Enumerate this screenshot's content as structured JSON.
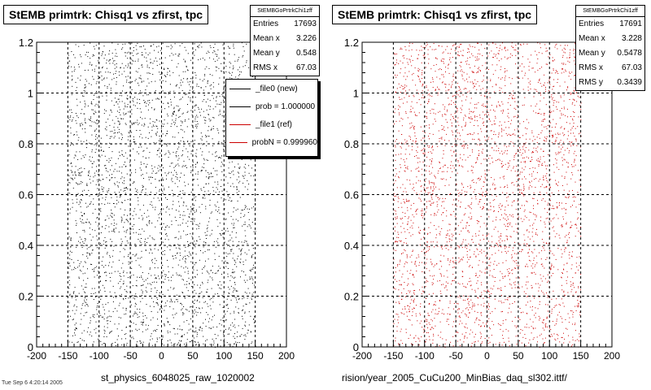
{
  "footer_text": "Tue Sep 6 4:20:14 2005",
  "colors": {
    "new": "#000000",
    "ref": "#cc0000"
  },
  "legend": [
    {
      "label": "_file0 (new)",
      "color": "#000000"
    },
    {
      "label": "prob = 1.000000",
      "color": "#000000"
    },
    {
      "label": "_file1 (ref)",
      "color": "#cc0000"
    },
    {
      "label": "probN = 0.999960",
      "color": "#cc0000"
    }
  ],
  "panels": [
    {
      "title": "StEMB primtrk: Chisq1 vs zfirst, tpc",
      "xlabel": "st_physics_6048025_raw_1020002",
      "stats": {
        "name": "StEMBGoPrtrkChi1zff",
        "rows": [
          {
            "label": "Entries",
            "value": "17693"
          },
          {
            "label": "Mean x",
            "value": "3.226"
          },
          {
            "label": "Mean y",
            "value": "0.548"
          },
          {
            "label": "RMS x",
            "value": "67.03"
          }
        ]
      }
    },
    {
      "title": "StEMB primtrk: Chisq1 vs zfirst, tpc",
      "xlabel": "rision/year_2005_CuCu200_MinBias_daq_sl302.ittf/",
      "stats": {
        "name": "StEMBGoPrtrkChi1zff",
        "rows": [
          {
            "label": "Entries",
            "value": "17691"
          },
          {
            "label": "Mean x",
            "value": "3.228"
          },
          {
            "label": "Mean y",
            "value": "0.5478"
          },
          {
            "label": "RMS x",
            "value": "67.03"
          },
          {
            "label": "RMS y",
            "value": "0.3439"
          }
        ]
      }
    }
  ],
  "chart_data": [
    {
      "type": "scatter",
      "title": "StEMB primtrk: Chisq1 vs zfirst, tpc",
      "xlabel": "st_physics_6048025_raw_1020002",
      "ylabel": "",
      "xlim": [
        -200,
        200
      ],
      "ylim": [
        0,
        1.2
      ],
      "x_ticks": [
        -200,
        -150,
        -100,
        -50,
        0,
        50,
        100,
        150,
        200
      ],
      "y_ticks": [
        0,
        0.2,
        0.4,
        0.6,
        0.8,
        1,
        1.2
      ],
      "grid": true,
      "marker_color": "#000000",
      "point_density": {
        "x_range": [
          -150,
          150
        ],
        "y_range": [
          0,
          1.2
        ],
        "entries": 17693
      },
      "series": [
        {
          "name": "_file0 (new)"
        }
      ]
    },
    {
      "type": "scatter",
      "title": "StEMB primtrk: Chisq1 vs zfirst, tpc",
      "xlabel": "rision/year_2005_CuCu200_MinBias_daq_sl302.ittf/",
      "ylabel": "",
      "xlim": [
        -200,
        200
      ],
      "ylim": [
        0,
        1.2
      ],
      "x_ticks": [
        -200,
        -150,
        -100,
        -50,
        0,
        50,
        100,
        150,
        200
      ],
      "y_ticks": [
        0,
        0.2,
        0.4,
        0.6,
        0.8,
        1,
        1.2
      ],
      "grid": true,
      "marker_color": "#cc0000",
      "point_density": {
        "x_range": [
          -150,
          150
        ],
        "y_range": [
          0,
          1.2
        ],
        "entries": 17691
      },
      "series": [
        {
          "name": "_file1 (ref)"
        }
      ]
    }
  ]
}
